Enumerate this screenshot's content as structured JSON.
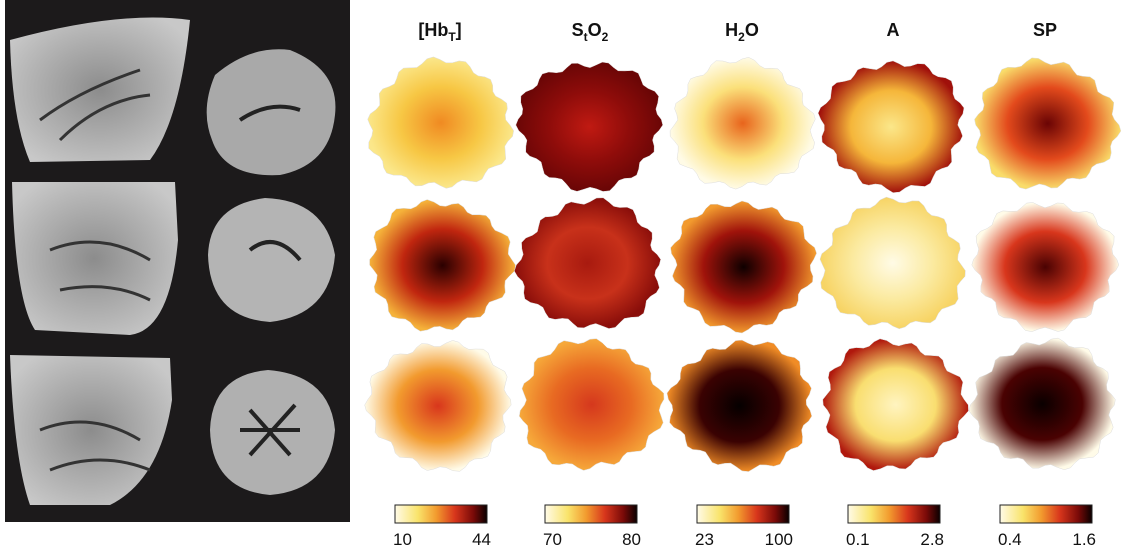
{
  "columns": [
    {
      "header": [
        "[Hb",
        "T",
        "]"
      ],
      "colorbar": {
        "min": 10,
        "max": 44
      }
    },
    {
      "header": [
        "S",
        "t",
        "O",
        "2"
      ],
      "colorbar": {
        "min": 70,
        "max": 80
      }
    },
    {
      "header": [
        "H",
        "2",
        "O"
      ],
      "colorbar": {
        "min": 23,
        "max": 100
      }
    },
    {
      "header": [
        "A"
      ],
      "colorbar": {
        "min": 0.1,
        "max": 2.8
      }
    },
    {
      "header": [
        "SP"
      ],
      "colorbar": {
        "min": 0.4,
        "max": 1.6
      }
    }
  ]
}
